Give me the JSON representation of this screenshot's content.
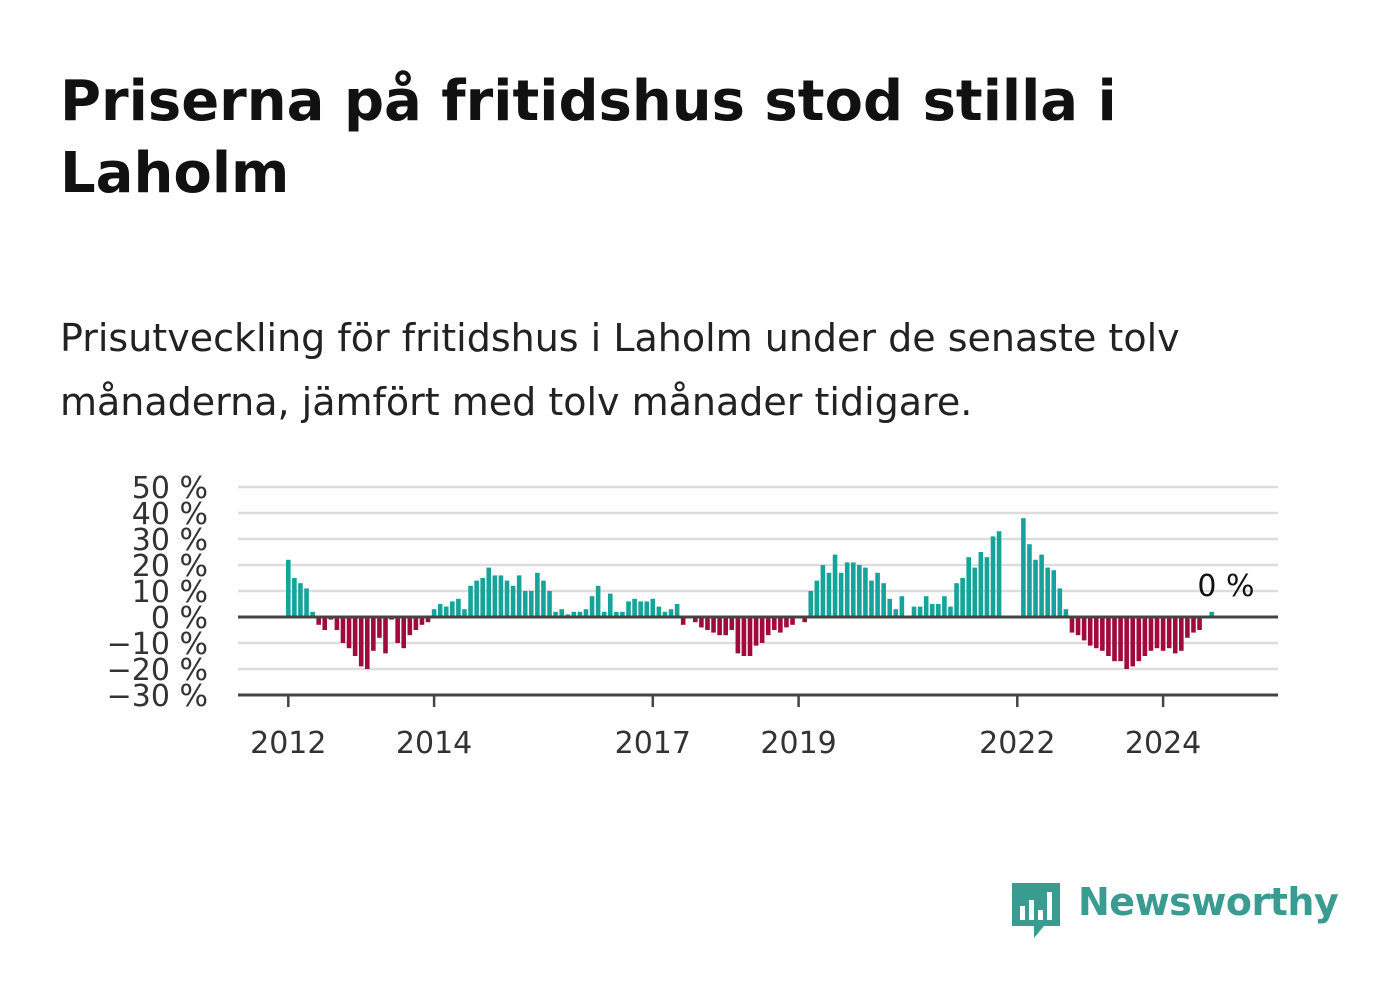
{
  "header": {
    "title": "Priserna på fritidshus stod stilla i Laholm",
    "subtitle": "Prisutveckling för fritidshus i Laholm under de senaste tolv månaderna, jämfört med tolv månader tidigare."
  },
  "brand": {
    "name": "Newsworthy",
    "icon": "newsworthy-logo-icon",
    "color": "#3a9c91"
  },
  "chart_data": {
    "type": "bar",
    "title": "",
    "xlabel": "",
    "ylabel": "",
    "ylim": [
      -30,
      50
    ],
    "y_ticks": [
      50,
      40,
      30,
      20,
      10,
      0,
      -10,
      -20,
      -30
    ],
    "y_tick_labels": [
      "50 %",
      "40 %",
      "30 %",
      "20 %",
      "10 %",
      "0 %",
      "−10 %",
      "−20 %",
      "−30 %"
    ],
    "x_ticks": [
      2012,
      2014,
      2017,
      2019,
      2022,
      2024
    ],
    "x_tick_labels": [
      "2012",
      "2014",
      "2017",
      "2019",
      "2022",
      "2024"
    ],
    "grid": true,
    "colors": {
      "positive": "#15a39a",
      "negative": "#a00a3c",
      "zero_line": "#444444",
      "grid": "#dddddd"
    },
    "last_value_label": "0 %",
    "series": [
      {
        "start": "2012-01",
        "frequency": "monthly",
        "values": [
          22,
          15,
          13,
          11,
          2,
          -3,
          -5,
          -1,
          -5,
          -10,
          -12,
          -15,
          -19,
          -20,
          -13,
          -8,
          -14,
          -1,
          -10,
          -12,
          -7,
          -5,
          -3,
          -2,
          3,
          5,
          4,
          6,
          7,
          3,
          12,
          14,
          15,
          19,
          16,
          16,
          14,
          12,
          16,
          10,
          10,
          17,
          14,
          10,
          2,
          3,
          1,
          2,
          2,
          3,
          8,
          12,
          2,
          9,
          2,
          2,
          6,
          7,
          6,
          6,
          7,
          4,
          2,
          3,
          5,
          -3,
          0,
          -2,
          -4,
          -5,
          -6,
          -7,
          -7,
          -5,
          -14,
          -15,
          -15,
          -11,
          -10,
          -7,
          -5,
          -6,
          -4,
          -3,
          0,
          -2,
          10,
          14,
          20,
          17,
          24,
          17,
          21,
          21,
          20,
          19,
          14,
          17,
          13,
          7,
          3,
          8,
          0,
          4,
          4,
          8,
          5,
          5,
          8,
          4,
          13,
          15,
          23,
          19,
          25,
          23,
          31,
          33,
          null,
          null,
          null,
          38,
          28,
          22,
          24,
          19,
          18,
          11,
          3,
          -6,
          -7,
          -9,
          -11,
          -12,
          -13,
          -15,
          -17,
          -17,
          -20,
          -19,
          -17,
          -15,
          -13,
          -12,
          -13,
          -12,
          -14,
          -13,
          -8,
          -6,
          -5,
          0,
          2,
          0
        ]
      }
    ]
  }
}
